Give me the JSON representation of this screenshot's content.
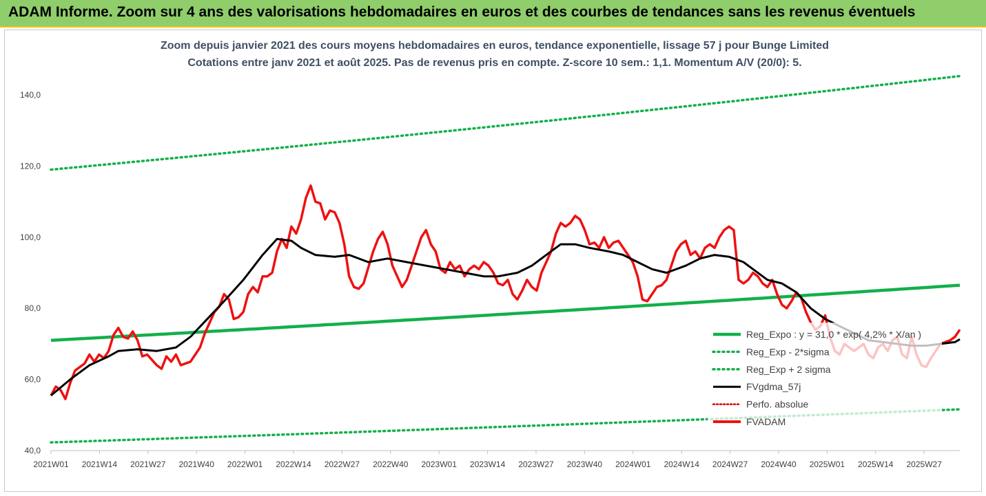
{
  "header": {
    "title": "ADAM Informe. Zoom sur 4 ans des valorisations hebdomadaires en euros et des courbes de tendances sans les revenus éventuels"
  },
  "colors": {
    "banner": "#8fce6a",
    "trend": "#12b04a",
    "band": "#12b04a",
    "ma": "#000000",
    "price": "#ee1111",
    "perfo": "#dd0000"
  },
  "chart_data": {
    "type": "line",
    "title": "Zoom depuis janvier 2021 des cours moyens hebdomadaires en euros, tendance exponentielle, lissage 57 j pour Bunge Limited",
    "subtitle": "Cotations entre janv 2021 et août 2025.  Pas de revenus pris en compte. Z-score 10 sem.: 1,1. Momentum A/V (20/0): 5.",
    "xlabel": "",
    "ylabel": "",
    "ylim": [
      40,
      150
    ],
    "y_ticks": [
      "40,0",
      "60,0",
      "80,0",
      "100,0",
      "120,0",
      "140,0"
    ],
    "x_ticks": [
      "2021W01",
      "2021W14",
      "2021W27",
      "2021W40",
      "2022W01",
      "2022W14",
      "2022W27",
      "2022W40",
      "2023W01",
      "2023W14",
      "2023W27",
      "2023W40",
      "2024W01",
      "2024W14",
      "2024W27",
      "2024W40",
      "2025W01",
      "2025W14",
      "2025W27"
    ],
    "grid": false,
    "legend_position": "bottom-right",
    "n_weeks": 242,
    "series": [
      {
        "name": "Reg_Expo : y = 31,0 * exp( 4,2% *  X/an )",
        "style": "solid-green",
        "values": [
          71,
          86.5
        ]
      },
      {
        "name": "Reg_Exp - 2*sigma",
        "style": "dotted-green",
        "values": [
          42.3,
          51.6
        ]
      },
      {
        "name": "Reg_Exp + 2 sigma",
        "style": "dotted-green",
        "values": [
          119,
          145.3
        ]
      },
      {
        "name": "FVgdma_57j",
        "style": "solid-black",
        "values": [
          [
            0,
            55.5
          ],
          [
            8,
            60
          ],
          [
            16,
            64
          ],
          [
            24,
            66.5
          ],
          [
            28,
            68
          ],
          [
            36,
            68.5
          ],
          [
            44,
            68
          ],
          [
            52,
            69
          ],
          [
            58,
            72
          ],
          [
            65,
            77
          ],
          [
            72,
            82
          ],
          [
            80,
            88
          ],
          [
            88,
            95
          ],
          [
            94,
            99.5
          ],
          [
            100,
            99
          ],
          [
            104,
            97
          ],
          [
            110,
            95
          ],
          [
            118,
            94.5
          ],
          [
            124,
            95
          ],
          [
            132,
            93
          ],
          [
            140,
            94
          ],
          [
            148,
            93
          ],
          [
            156,
            92
          ],
          [
            164,
            91
          ],
          [
            172,
            90
          ],
          [
            180,
            89
          ],
          [
            186,
            89
          ],
          [
            194,
            90
          ],
          [
            200,
            92
          ],
          [
            206,
            95
          ],
          [
            212,
            98
          ],
          [
            218,
            98
          ],
          [
            224,
            97
          ],
          [
            232,
            96
          ],
          [
            238,
            95
          ],
          [
            244,
            93
          ],
          [
            250,
            91
          ],
          [
            256,
            90
          ],
          [
            264,
            92
          ],
          [
            270,
            94
          ],
          [
            276,
            95
          ],
          [
            282,
            94.5
          ],
          [
            288,
            93
          ],
          [
            292,
            91
          ],
          [
            298,
            88
          ],
          [
            304,
            87
          ],
          [
            310,
            84.5
          ],
          [
            316,
            80
          ],
          [
            322,
            77
          ],
          [
            328,
            75
          ],
          [
            334,
            73
          ],
          [
            340,
            71
          ],
          [
            346,
            70.5
          ],
          [
            352,
            70
          ],
          [
            358,
            69.5
          ],
          [
            364,
            69.5
          ],
          [
            370,
            70
          ],
          [
            376,
            70.5
          ],
          [
            378,
            71.3
          ]
        ]
      },
      {
        "name": "Perfo. absolue",
        "style": "dotted-red",
        "values": []
      },
      {
        "name": "FVADAM",
        "style": "solid-red",
        "values": [
          [
            0,
            55.5
          ],
          [
            2,
            58
          ],
          [
            4,
            57
          ],
          [
            6,
            54.5
          ],
          [
            8,
            59
          ],
          [
            10,
            62.5
          ],
          [
            12,
            63.5
          ],
          [
            14,
            64.5
          ],
          [
            16,
            67
          ],
          [
            18,
            65
          ],
          [
            20,
            67
          ],
          [
            22,
            66
          ],
          [
            24,
            68
          ],
          [
            26,
            72.5
          ],
          [
            28,
            74.5
          ],
          [
            30,
            72
          ],
          [
            32,
            71.5
          ],
          [
            34,
            73.5
          ],
          [
            36,
            71
          ],
          [
            38,
            66.5
          ],
          [
            40,
            67
          ],
          [
            42,
            65.5
          ],
          [
            44,
            64
          ],
          [
            46,
            63
          ],
          [
            48,
            66.5
          ],
          [
            50,
            65
          ],
          [
            52,
            67
          ],
          [
            54,
            64
          ],
          [
            56,
            64.5
          ],
          [
            58,
            65
          ],
          [
            60,
            67
          ],
          [
            62,
            69
          ],
          [
            64,
            73
          ],
          [
            66,
            76
          ],
          [
            68,
            79
          ],
          [
            70,
            80.5
          ],
          [
            72,
            84
          ],
          [
            74,
            82.5
          ],
          [
            76,
            77
          ],
          [
            78,
            77.5
          ],
          [
            80,
            79
          ],
          [
            82,
            84
          ],
          [
            84,
            86
          ],
          [
            86,
            84.5
          ],
          [
            88,
            89
          ],
          [
            90,
            89
          ],
          [
            92,
            90
          ],
          [
            94,
            96
          ],
          [
            96,
            99.5
          ],
          [
            98,
            97
          ],
          [
            100,
            103
          ],
          [
            102,
            101
          ],
          [
            104,
            105
          ],
          [
            106,
            111
          ],
          [
            108,
            114.5
          ],
          [
            110,
            110
          ],
          [
            112,
            109.5
          ],
          [
            114,
            105
          ],
          [
            116,
            107.5
          ],
          [
            118,
            107
          ],
          [
            120,
            104
          ],
          [
            122,
            98
          ],
          [
            124,
            89
          ],
          [
            126,
            86
          ],
          [
            128,
            85.5
          ],
          [
            130,
            87
          ],
          [
            132,
            91.5
          ],
          [
            134,
            96
          ],
          [
            136,
            99.5
          ],
          [
            138,
            101.5
          ],
          [
            140,
            98
          ],
          [
            142,
            92
          ],
          [
            144,
            89
          ],
          [
            146,
            86
          ],
          [
            148,
            88
          ],
          [
            150,
            92
          ],
          [
            152,
            96
          ],
          [
            154,
            100
          ],
          [
            156,
            102
          ],
          [
            158,
            98
          ],
          [
            160,
            96
          ],
          [
            162,
            91
          ],
          [
            164,
            90
          ],
          [
            166,
            93
          ],
          [
            168,
            91
          ],
          [
            170,
            92
          ],
          [
            172,
            89
          ],
          [
            174,
            91
          ],
          [
            176,
            92
          ],
          [
            178,
            91
          ],
          [
            180,
            93
          ],
          [
            182,
            92
          ],
          [
            184,
            90
          ],
          [
            186,
            87
          ],
          [
            188,
            86.5
          ],
          [
            190,
            88
          ],
          [
            192,
            84
          ],
          [
            194,
            82.5
          ],
          [
            196,
            85
          ],
          [
            198,
            88
          ],
          [
            200,
            86
          ],
          [
            202,
            85
          ],
          [
            204,
            90
          ],
          [
            206,
            93
          ],
          [
            208,
            96
          ],
          [
            210,
            101
          ],
          [
            212,
            104
          ],
          [
            214,
            103
          ],
          [
            216,
            104
          ],
          [
            218,
            106
          ],
          [
            220,
            105
          ],
          [
            222,
            102
          ],
          [
            224,
            98
          ],
          [
            226,
            98.5
          ],
          [
            228,
            97
          ],
          [
            230,
            100
          ],
          [
            232,
            97
          ],
          [
            234,
            98.5
          ],
          [
            236,
            99
          ],
          [
            238,
            97
          ],
          [
            240,
            95
          ],
          [
            242,
            93
          ],
          [
            244,
            89
          ],
          [
            246,
            82.5
          ],
          [
            248,
            82
          ],
          [
            250,
            84
          ],
          [
            252,
            86
          ],
          [
            254,
            86.5
          ],
          [
            256,
            88
          ],
          [
            258,
            92
          ],
          [
            260,
            96
          ],
          [
            262,
            98
          ],
          [
            264,
            99
          ],
          [
            266,
            95
          ],
          [
            268,
            96
          ],
          [
            270,
            94
          ],
          [
            272,
            97
          ],
          [
            274,
            98
          ],
          [
            276,
            97
          ],
          [
            278,
            100
          ],
          [
            280,
            102
          ],
          [
            282,
            103
          ],
          [
            284,
            102
          ],
          [
            286,
            88
          ],
          [
            288,
            87
          ],
          [
            290,
            88
          ],
          [
            292,
            90
          ],
          [
            294,
            89
          ],
          [
            296,
            87
          ],
          [
            298,
            86
          ],
          [
            300,
            88
          ],
          [
            302,
            84
          ],
          [
            304,
            81
          ],
          [
            306,
            80
          ],
          [
            308,
            82
          ],
          [
            310,
            84.5
          ],
          [
            312,
            83
          ],
          [
            314,
            79
          ],
          [
            316,
            76
          ],
          [
            318,
            74
          ],
          [
            320,
            75
          ],
          [
            322,
            78
          ],
          [
            324,
            72
          ],
          [
            326,
            68
          ],
          [
            328,
            67
          ],
          [
            330,
            70
          ],
          [
            332,
            69
          ],
          [
            334,
            68
          ],
          [
            336,
            69
          ],
          [
            338,
            70
          ],
          [
            340,
            67
          ],
          [
            342,
            66
          ],
          [
            344,
            69
          ],
          [
            346,
            70
          ],
          [
            348,
            68
          ],
          [
            350,
            71
          ],
          [
            352,
            72
          ],
          [
            354,
            67
          ],
          [
            356,
            66
          ],
          [
            358,
            72
          ],
          [
            360,
            67
          ],
          [
            362,
            64
          ],
          [
            364,
            63.5
          ],
          [
            366,
            66
          ],
          [
            368,
            68
          ],
          [
            370,
            70
          ],
          [
            372,
            70.5
          ],
          [
            374,
            71
          ],
          [
            376,
            72
          ],
          [
            378,
            74
          ]
        ]
      }
    ]
  }
}
